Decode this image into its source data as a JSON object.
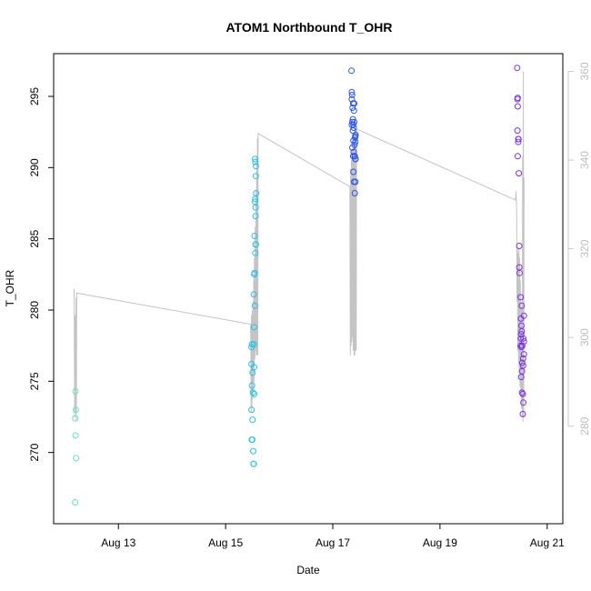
{
  "chart_data": {
    "type": "scatter",
    "title": "ATOM1 Northbound T_OHR",
    "xlabel": "Date",
    "ylabel": "T_OHR",
    "x_axis_type": "date",
    "xlim": [
      "2023-08-11T19:00",
      "2023-08-21T07:00"
    ],
    "ylim": [
      265,
      298
    ],
    "y2lim": [
      258,
      364
    ],
    "x_ticks": [
      {
        "value": "2023-08-13T00:00",
        "label": "Aug 13"
      },
      {
        "value": "2023-08-15T00:00",
        "label": "Aug 15"
      },
      {
        "value": "2023-08-17T00:00",
        "label": "Aug 17"
      },
      {
        "value": "2023-08-19T00:00",
        "label": "Aug 19"
      },
      {
        "value": "2023-08-21T00:00",
        "label": "Aug 21"
      }
    ],
    "y_ticks": [
      270,
      275,
      280,
      285,
      290,
      295
    ],
    "y2_ticks": [
      280,
      300,
      320,
      340,
      360
    ],
    "grid": false,
    "point_colors": [
      "#5fe9b8",
      "#25c2ea",
      "#2d55ea",
      "#7d30ea"
    ],
    "line_color": "#c4c4c4",
    "right_axis_color": "#c8c8c8",
    "series": [
      {
        "color": "#5fe9b8",
        "points": [
          [
            "2023-08-12T04:47",
            274.3
          ],
          [
            "2023-08-12T04:40",
            272.4
          ],
          [
            "2023-08-12T04:55",
            273.0
          ],
          [
            "2023-08-12T04:47",
            271.2
          ],
          [
            "2023-08-12T05:02",
            269.6
          ],
          [
            "2023-08-12T04:40",
            266.5
          ]
        ]
      },
      {
        "color": "#25c2ea",
        "points": [
          [
            "2023-08-15T11:36",
            277.4
          ],
          [
            "2023-08-15T11:50",
            277.6
          ],
          [
            "2023-08-15T11:36",
            276.2
          ],
          [
            "2023-08-15T12:05",
            275.6
          ],
          [
            "2023-08-15T11:50",
            274.7
          ],
          [
            "2023-08-15T12:14",
            274.2
          ],
          [
            "2023-08-15T11:36",
            273.0
          ],
          [
            "2023-08-15T12:05",
            272.3
          ],
          [
            "2023-08-15T11:43",
            270.9
          ],
          [
            "2023-08-15T11:58",
            270.9
          ],
          [
            "2023-08-15T12:22",
            270.1
          ],
          [
            "2023-08-15T12:29",
            269.2
          ],
          [
            "2023-08-15T12:36",
            269.2
          ],
          [
            "2023-08-15T12:36",
            277.6
          ],
          [
            "2023-08-15T12:43",
            276.0
          ],
          [
            "2023-08-15T12:50",
            274.1
          ],
          [
            "2023-08-15T12:36",
            281.1
          ],
          [
            "2023-08-15T12:43",
            278.8
          ],
          [
            "2023-08-15T12:50",
            282.5
          ],
          [
            "2023-08-15T12:58",
            282.6
          ],
          [
            "2023-08-15T13:05",
            280.3
          ],
          [
            "2023-08-15T12:58",
            285.2
          ],
          [
            "2023-08-15T13:19",
            284.0
          ],
          [
            "2023-08-15T13:26",
            284.6
          ],
          [
            "2023-08-15T13:34",
            284.6
          ],
          [
            "2023-08-15T13:12",
            287.6
          ],
          [
            "2023-08-15T13:19",
            287.8
          ],
          [
            "2023-08-15T13:26",
            287.2
          ],
          [
            "2023-08-15T13:26",
            286.6
          ],
          [
            "2023-08-15T13:41",
            288.2
          ],
          [
            "2023-08-15T13:12",
            290.6
          ],
          [
            "2023-08-15T13:19",
            290.4
          ],
          [
            "2023-08-15T13:34",
            290.1
          ],
          [
            "2023-08-15T13:34",
            289.4
          ]
        ]
      },
      {
        "color": "#2d55ea",
        "points": [
          [
            "2023-08-17T08:24",
            296.8
          ],
          [
            "2023-08-17T08:31",
            295.3
          ],
          [
            "2023-08-17T08:38",
            295.1
          ],
          [
            "2023-08-17T08:31",
            294.8
          ],
          [
            "2023-08-17T09:07",
            294.5
          ],
          [
            "2023-08-17T09:36",
            294.5
          ],
          [
            "2023-08-17T08:53",
            294.2
          ],
          [
            "2023-08-17T09:29",
            294.0
          ],
          [
            "2023-08-17T09:00",
            293.4
          ],
          [
            "2023-08-17T08:31",
            293.0
          ],
          [
            "2023-08-17T08:46",
            293.2
          ],
          [
            "2023-08-17T09:14",
            293.0
          ],
          [
            "2023-08-17T09:36",
            293.2
          ],
          [
            "2023-08-17T09:22",
            292.8
          ],
          [
            "2023-08-17T09:00",
            292.6
          ],
          [
            "2023-08-17T10:05",
            292.2
          ],
          [
            "2023-08-17T09:58",
            292.1
          ],
          [
            "2023-08-17T10:12",
            292.3
          ],
          [
            "2023-08-17T09:14",
            291.9
          ],
          [
            "2023-08-17T09:43",
            291.6
          ],
          [
            "2023-08-17T10:05",
            291.8
          ],
          [
            "2023-08-17T08:46",
            291.4
          ],
          [
            "2023-08-17T09:07",
            290.8
          ],
          [
            "2023-08-17T09:22",
            291.1
          ],
          [
            "2023-08-17T09:43",
            290.8
          ],
          [
            "2023-08-17T09:50",
            290.8
          ],
          [
            "2023-08-17T10:05",
            290.6
          ],
          [
            "2023-08-17T10:12",
            290.6
          ],
          [
            "2023-08-17T09:14",
            289.7
          ],
          [
            "2023-08-17T09:29",
            289.0
          ],
          [
            "2023-08-17T10:05",
            289.0
          ],
          [
            "2023-08-17T09:50",
            288.2
          ]
        ]
      },
      {
        "color": "#7d30ea",
        "points": [
          [
            "2023-08-20T10:34",
            297.0
          ],
          [
            "2023-08-20T10:48",
            294.9
          ],
          [
            "2023-08-20T10:41",
            294.8
          ],
          [
            "2023-08-20T10:48",
            294.3
          ],
          [
            "2023-08-20T10:41",
            292.6
          ],
          [
            "2023-08-20T11:02",
            292.0
          ],
          [
            "2023-08-20T11:10",
            292.0
          ],
          [
            "2023-08-20T11:02",
            291.8
          ],
          [
            "2023-08-20T10:48",
            290.8
          ],
          [
            "2023-08-20T11:17",
            289.6
          ],
          [
            "2023-08-20T11:31",
            283.0
          ],
          [
            "2023-08-20T11:38",
            282.6
          ],
          [
            "2023-08-20T11:31",
            284.5
          ],
          [
            "2023-08-20T12:07",
            280.9
          ],
          [
            "2023-08-20T12:36",
            280.3
          ],
          [
            "2023-08-20T12:14",
            279.4
          ],
          [
            "2023-08-20T12:29",
            278.9
          ],
          [
            "2023-08-20T12:22",
            278.3
          ],
          [
            "2023-08-20T12:36",
            278.5
          ],
          [
            "2023-08-20T12:14",
            278.0
          ],
          [
            "2023-08-20T13:19",
            278.0
          ],
          [
            "2023-08-20T13:34",
            277.8
          ],
          [
            "2023-08-20T12:07",
            277.5
          ],
          [
            "2023-08-20T12:29",
            277.4
          ],
          [
            "2023-08-20T12:50",
            277.5
          ],
          [
            "2023-08-20T13:34",
            276.9
          ],
          [
            "2023-08-20T13:12",
            276.6
          ],
          [
            "2023-08-20T12:50",
            276.3
          ],
          [
            "2023-08-20T13:12",
            276.1
          ],
          [
            "2023-08-20T12:43",
            275.7
          ],
          [
            "2023-08-20T12:22",
            275.3
          ],
          [
            "2023-08-20T12:43",
            274.2
          ],
          [
            "2023-08-20T13:05",
            274.1
          ],
          [
            "2023-08-20T13:19",
            273.5
          ],
          [
            "2023-08-20T13:05",
            272.7
          ],
          [
            "2023-08-20T13:34",
            279.6
          ]
        ]
      }
    ],
    "secondary_line": {
      "color": "#c4c4c4",
      "points": [
        [
          "2023-08-12T04:10",
          311
        ],
        [
          "2023-08-12T04:25",
          282
        ],
        [
          "2023-08-12T04:40",
          305
        ],
        [
          "2023-08-12T04:50",
          283
        ],
        [
          "2023-08-12T05:00",
          309
        ],
        [
          "2023-08-12T05:10",
          281
        ],
        [
          "2023-08-12T05:20",
          310
        ],
        [
          "2023-08-15T11:05",
          303
        ],
        [
          "2023-08-15T11:15",
          300
        ],
        [
          "2023-08-15T11:25",
          283
        ],
        [
          "2023-08-15T11:35",
          305
        ],
        [
          "2023-08-15T11:45",
          284
        ],
        [
          "2023-08-15T11:55",
          306
        ],
        [
          "2023-08-15T12:05",
          286
        ],
        [
          "2023-08-15T12:15",
          308
        ],
        [
          "2023-08-15T12:25",
          287
        ],
        [
          "2023-08-15T12:35",
          313
        ],
        [
          "2023-08-15T12:45",
          290
        ],
        [
          "2023-08-15T12:55",
          318
        ],
        [
          "2023-08-15T13:05",
          295
        ],
        [
          "2023-08-15T13:15",
          325
        ],
        [
          "2023-08-15T13:25",
          297
        ],
        [
          "2023-08-15T13:35",
          333
        ],
        [
          "2023-08-15T13:45",
          296
        ],
        [
          "2023-08-15T13:55",
          341
        ],
        [
          "2023-08-15T14:05",
          296
        ],
        [
          "2023-08-15T14:15",
          345
        ],
        [
          "2023-08-15T14:25",
          296
        ],
        [
          "2023-08-15T14:35",
          346
        ],
        [
          "2023-08-17T07:40",
          334
        ],
        [
          "2023-08-17T07:50",
          296
        ],
        [
          "2023-08-17T08:00",
          338
        ],
        [
          "2023-08-17T08:10",
          298
        ],
        [
          "2023-08-17T08:20",
          340
        ],
        [
          "2023-08-17T08:30",
          299
        ],
        [
          "2023-08-17T08:40",
          342
        ],
        [
          "2023-08-17T08:50",
          300
        ],
        [
          "2023-08-17T09:00",
          343
        ],
        [
          "2023-08-17T09:10",
          297
        ],
        [
          "2023-08-17T09:20",
          344
        ],
        [
          "2023-08-17T09:30",
          296
        ],
        [
          "2023-08-17T09:40",
          345
        ],
        [
          "2023-08-17T09:50",
          296
        ],
        [
          "2023-08-17T10:00",
          346
        ],
        [
          "2023-08-17T10:10",
          297
        ],
        [
          "2023-08-17T10:20",
          346
        ],
        [
          "2023-08-17T10:30",
          297
        ],
        [
          "2023-08-17T10:40",
          347
        ],
        [
          "2023-08-20T09:50",
          331
        ],
        [
          "2023-08-20T10:05",
          333
        ],
        [
          "2023-08-20T10:20",
          329
        ],
        [
          "2023-08-20T10:30",
          308
        ],
        [
          "2023-08-20T10:40",
          320
        ],
        [
          "2023-08-20T10:50",
          297
        ],
        [
          "2023-08-20T11:00",
          319
        ],
        [
          "2023-08-20T11:10",
          294
        ],
        [
          "2023-08-20T11:20",
          320
        ],
        [
          "2023-08-20T11:30",
          292
        ],
        [
          "2023-08-20T11:40",
          318
        ],
        [
          "2023-08-20T11:50",
          289
        ],
        [
          "2023-08-20T12:00",
          313
        ],
        [
          "2023-08-20T12:10",
          287
        ],
        [
          "2023-08-20T12:20",
          307
        ],
        [
          "2023-08-20T12:30",
          284
        ],
        [
          "2023-08-20T12:40",
          308
        ],
        [
          "2023-08-20T12:50",
          282
        ],
        [
          "2023-08-20T13:00",
          341
        ],
        [
          "2023-08-20T13:10",
          281
        ],
        [
          "2023-08-20T13:20",
          360
        ],
        [
          "2023-08-20T13:30",
          282
        ],
        [
          "2023-08-20T13:40",
          336
        ]
      ]
    }
  }
}
